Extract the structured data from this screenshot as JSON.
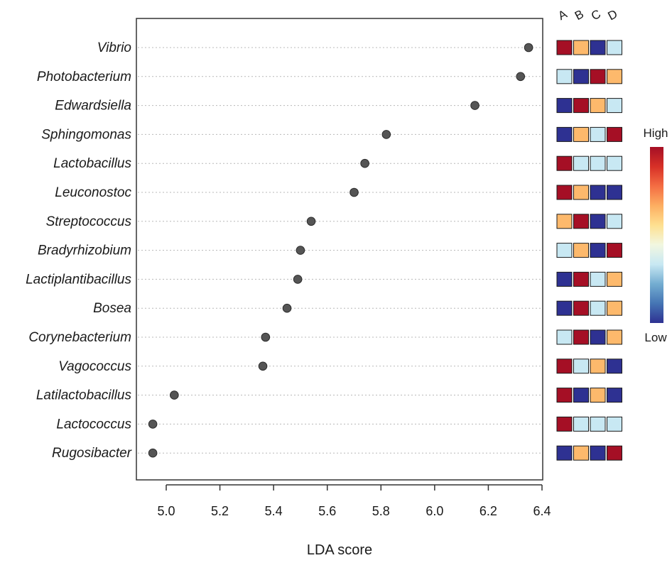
{
  "chart_data": {
    "type": "scatter",
    "xlabel": "LDA score",
    "xlim": [
      4.93,
      6.41
    ],
    "xticks": [
      "5.0",
      "5.2",
      "5.4",
      "5.6",
      "5.8",
      "6.0",
      "6.2",
      "6.4"
    ],
    "taxa": [
      {
        "name": "Vibrio",
        "lda": 6.35,
        "levels": [
          "high",
          "mid_high",
          "low",
          "mid_low"
        ]
      },
      {
        "name": "Photobacterium",
        "lda": 6.32,
        "levels": [
          "mid_low",
          "low",
          "high",
          "mid_high"
        ]
      },
      {
        "name": "Edwardsiella",
        "lda": 6.15,
        "levels": [
          "low",
          "high",
          "mid_high",
          "mid_low"
        ]
      },
      {
        "name": "Sphingomonas",
        "lda": 5.82,
        "levels": [
          "low",
          "mid_high",
          "mid_low",
          "high"
        ]
      },
      {
        "name": "Lactobacillus",
        "lda": 5.74,
        "levels": [
          "high",
          "mid_low",
          "mid_low",
          "mid_low"
        ]
      },
      {
        "name": "Leuconostoc",
        "lda": 5.7,
        "levels": [
          "high",
          "mid_high",
          "low",
          "low"
        ]
      },
      {
        "name": "Streptococcus",
        "lda": 5.54,
        "levels": [
          "mid_high",
          "high",
          "low",
          "mid_low"
        ]
      },
      {
        "name": "Bradyrhizobium",
        "lda": 5.5,
        "levels": [
          "mid_low",
          "mid_high",
          "low",
          "high"
        ]
      },
      {
        "name": "Lactiplantibacillus",
        "lda": 5.49,
        "levels": [
          "low",
          "high",
          "mid_low",
          "mid_high"
        ]
      },
      {
        "name": "Bosea",
        "lda": 5.45,
        "levels": [
          "low",
          "high",
          "mid_low",
          "mid_high"
        ]
      },
      {
        "name": "Corynebacterium",
        "lda": 5.37,
        "levels": [
          "mid_low",
          "high",
          "low",
          "mid_high"
        ]
      },
      {
        "name": "Vagococcus",
        "lda": 5.36,
        "levels": [
          "high",
          "mid_low",
          "mid_high",
          "low"
        ]
      },
      {
        "name": "Latilactobacillus",
        "lda": 5.03,
        "levels": [
          "high",
          "low",
          "mid_high",
          "low"
        ]
      },
      {
        "name": "Lactococcus",
        "lda": 4.95,
        "levels": [
          "high",
          "mid_low",
          "mid_low",
          "mid_low"
        ]
      },
      {
        "name": "Rugosibacter",
        "lda": 4.95,
        "levels": [
          "low",
          "mid_high",
          "low",
          "high"
        ]
      }
    ],
    "groups": [
      "A",
      "B",
      "C",
      "D"
    ],
    "level_colors": {
      "high": "#a50f25",
      "mid_high": "#fdb96c",
      "mid_low": "#c8e8f3",
      "low": "#2e3192"
    },
    "point_color": "#555555",
    "legend": {
      "high_label": "High",
      "low_label": "Low",
      "gradient": [
        "#a50f25",
        "#d73027",
        "#f46d43",
        "#fdae61",
        "#fee090",
        "#f2f7e0",
        "#c8e8f3",
        "#74add1",
        "#4575b4",
        "#2e3192"
      ]
    }
  }
}
